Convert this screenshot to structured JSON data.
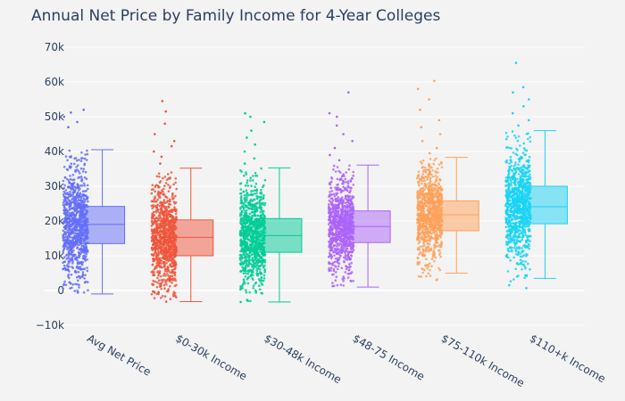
{
  "chart_data": {
    "type": "box",
    "title": "Annual Net Price by Family Income for 4-Year Colleges",
    "xlabel": "",
    "ylabel": "",
    "ylim": [
      -10000,
      70000
    ],
    "y_ticks": [
      -10000,
      0,
      10000,
      20000,
      30000,
      40000,
      50000,
      60000,
      70000
    ],
    "y_tick_labels": [
      "−10k",
      "0",
      "10k",
      "20k",
      "30k",
      "40k",
      "50k",
      "60k",
      "70k"
    ],
    "grid": true,
    "legend": "none",
    "boxpoints": "all",
    "series": [
      {
        "category": "Avg Net Price",
        "color": "#636efa",
        "min": -1000,
        "q1": 13500,
        "median": 19000,
        "q3": 24200,
        "max": 40500,
        "points_min": -1000,
        "points_max": 52000,
        "outliers": [
          47000,
          48500,
          50000,
          51200,
          52000
        ]
      },
      {
        "category": "$0-30k Income",
        "color": "#ef553b",
        "min": -3200,
        "q1": 10000,
        "median": 15300,
        "q3": 20300,
        "max": 35200,
        "points_min": -3200,
        "points_max": 54500,
        "outliers": [
          -3200,
          36500,
          38500,
          40000,
          41500,
          43000,
          45000,
          48000,
          51500,
          54500
        ]
      },
      {
        "category": "$30-48k Income",
        "color": "#00cc96",
        "min": -3300,
        "q1": 11000,
        "median": 15800,
        "q3": 20700,
        "max": 35300,
        "points_min": -3300,
        "points_max": 51000,
        "outliers": [
          -3300,
          36500,
          38000,
          40000,
          42000,
          44000,
          46000,
          48500,
          50000,
          51000
        ]
      },
      {
        "category": "$48-75 Income",
        "color": "#ab63fa",
        "min": 1000,
        "q1": 13800,
        "median": 18400,
        "q3": 22900,
        "max": 36100,
        "points_min": 1000,
        "points_max": 57000,
        "outliers": [
          37500,
          39000,
          41000,
          43000,
          45000,
          47500,
          50000,
          51000,
          57000
        ]
      },
      {
        "category": "$75-110k Income",
        "color": "#ffa15a",
        "min": 5000,
        "q1": 17200,
        "median": 21800,
        "q3": 25800,
        "max": 38300,
        "points_min": 3000,
        "points_max": 60300,
        "outliers": [
          3000,
          4000,
          39500,
          41000,
          43000,
          45000,
          47000,
          49000,
          52000,
          55000,
          58000,
          60300
        ]
      },
      {
        "category": "$110+k Income",
        "color": "#19d3f3",
        "min": 3500,
        "q1": 19200,
        "median": 24100,
        "q3": 30000,
        "max": 46000,
        "points_min": 700,
        "points_max": 65500,
        "outliers": [
          700,
          1500,
          47500,
          49000,
          51000,
          53000,
          55000,
          57000,
          58500,
          65500
        ]
      }
    ]
  }
}
